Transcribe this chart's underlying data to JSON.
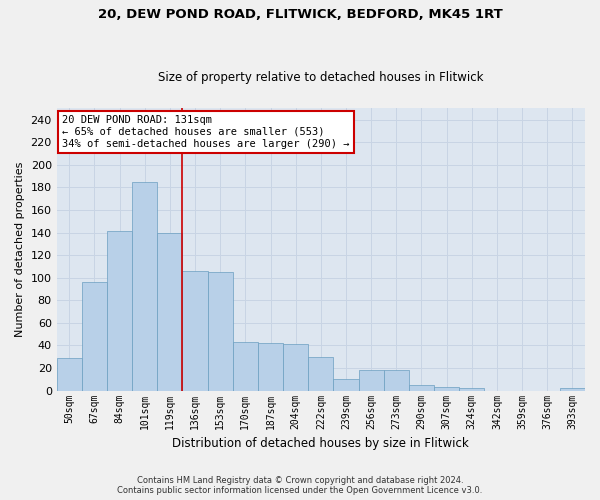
{
  "title1": "20, DEW POND ROAD, FLITWICK, BEDFORD, MK45 1RT",
  "title2": "Size of property relative to detached houses in Flitwick",
  "xlabel": "Distribution of detached houses by size in Flitwick",
  "ylabel": "Number of detached properties",
  "categories": [
    "50sqm",
    "67sqm",
    "84sqm",
    "101sqm",
    "119sqm",
    "136sqm",
    "153sqm",
    "170sqm",
    "187sqm",
    "204sqm",
    "222sqm",
    "239sqm",
    "256sqm",
    "273sqm",
    "290sqm",
    "307sqm",
    "324sqm",
    "342sqm",
    "359sqm",
    "376sqm",
    "393sqm"
  ],
  "values": [
    29,
    96,
    141,
    185,
    140,
    106,
    105,
    43,
    42,
    41,
    30,
    10,
    18,
    18,
    5,
    3,
    2,
    0,
    0,
    0,
    2
  ],
  "bar_color": "#b8d0e8",
  "bar_edge_color": "#6a9ec0",
  "annotation_line1": "20 DEW POND ROAD: 131sqm",
  "annotation_line2": "← 65% of detached houses are smaller (553)",
  "annotation_line3": "34% of semi-detached houses are larger (290) →",
  "annotation_box_color": "#ffffff",
  "annotation_box_edge": "#cc0000",
  "vline_color": "#cc0000",
  "vline_x": 4.5,
  "ylim": [
    0,
    250
  ],
  "yticks": [
    0,
    20,
    40,
    60,
    80,
    100,
    120,
    140,
    160,
    180,
    200,
    220,
    240
  ],
  "grid_color": "#c8d4e4",
  "bg_color": "#dde6f0",
  "fig_bg_color": "#f0f0f0",
  "footer1": "Contains HM Land Registry data © Crown copyright and database right 2024.",
  "footer2": "Contains public sector information licensed under the Open Government Licence v3.0."
}
